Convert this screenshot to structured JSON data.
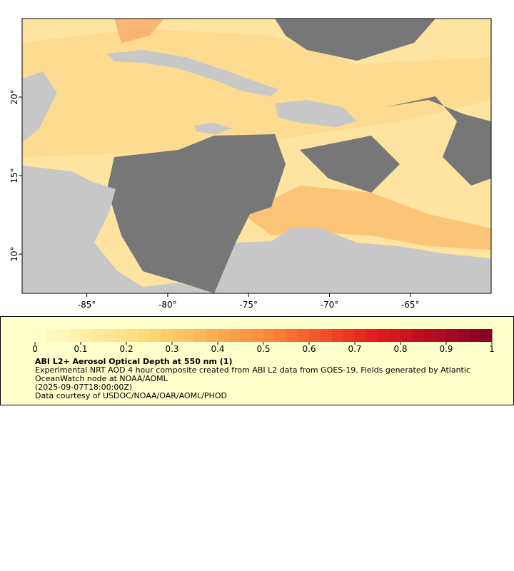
{
  "map": {
    "xlim": [
      -89,
      -60
    ],
    "ylim": [
      7.5,
      25
    ],
    "xticks": [
      {
        "value": -85,
        "label": "-85°"
      },
      {
        "value": -80,
        "label": "-80°"
      },
      {
        "value": -75,
        "label": "-75°"
      },
      {
        "value": -70,
        "label": "-70°"
      },
      {
        "value": -65,
        "label": "-65°"
      }
    ],
    "yticks": [
      {
        "value": 10,
        "label": "10°"
      },
      {
        "value": 15,
        "label": "15°"
      },
      {
        "value": 20,
        "label": "20°"
      }
    ]
  },
  "legend": {
    "colorbar": {
      "lim": [
        0,
        1
      ],
      "ticks": [
        0,
        0.1,
        0.2,
        0.3,
        0.4,
        0.5,
        0.6,
        0.7,
        0.8,
        0.9,
        1
      ],
      "colormap": [
        "#ffffcc",
        "#fed976",
        "#fd8d3c",
        "#e31a1c",
        "#800026"
      ]
    },
    "title": "ABI L2+ Aerosol Optical Depth at 550 nm (1)",
    "description": "Experimental NRT AOD 4 hour composite created from ABI L2 data from GOES-19. Fields generated by Atlantic OceanWatch node at NOAA/AOML",
    "timestamp": "(2025-09-07T18:00:00Z)",
    "credit": "Data courtesy of USDOC/NOAA/OAR/AOML/PHOD"
  }
}
